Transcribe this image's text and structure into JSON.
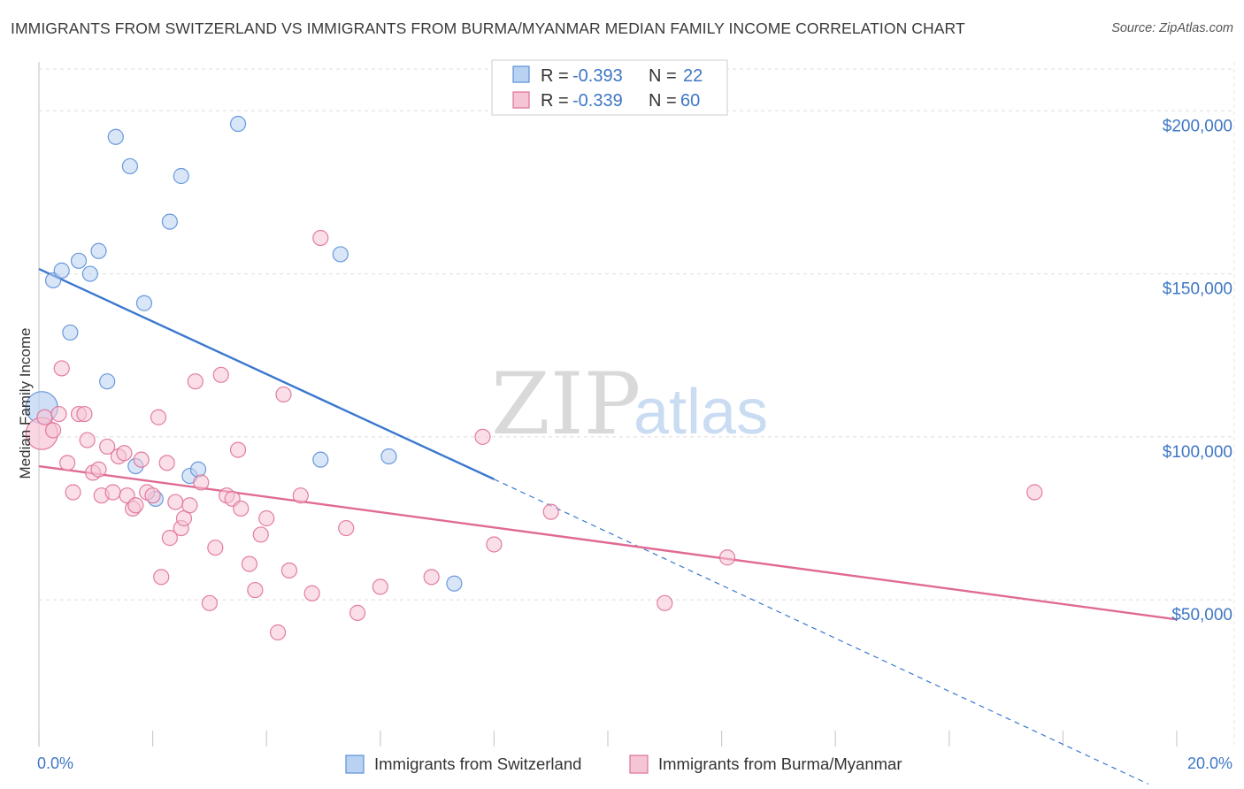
{
  "header": {
    "title": "IMMIGRANTS FROM SWITZERLAND VS IMMIGRANTS FROM BURMA/MYANMAR MEDIAN FAMILY INCOME CORRELATION CHART",
    "source": "Source: ZipAtlas.com"
  },
  "watermark": {
    "zip": "ZIP",
    "atlas": "atlas"
  },
  "legend_top": {
    "rows": [
      {
        "r_label": "R = ",
        "r_value": "-0.393",
        "n_label": "N = ",
        "n_value": "22"
      },
      {
        "r_label": "R = ",
        "r_value": "-0.339",
        "n_label": "N = ",
        "n_value": "60"
      }
    ]
  },
  "chart_data": {
    "type": "scatter",
    "title": "IMMIGRANTS FROM SWITZERLAND VS IMMIGRANTS FROM BURMA/MYANMAR MEDIAN FAMILY INCOME CORRELATION CHART",
    "xlabel": "",
    "ylabel": "Median Family Income",
    "xlim": [
      0,
      20
    ],
    "ylim": [
      5000,
      215000
    ],
    "x_tick_labels": [
      "0.0%",
      "20.0%"
    ],
    "y_ticks": [
      {
        "value": 50000,
        "label": "$50,000"
      },
      {
        "value": 100000,
        "label": "$100,000"
      },
      {
        "value": 150000,
        "label": "$150,000"
      },
      {
        "value": 200000,
        "label": "$200,000"
      }
    ],
    "grid": true,
    "legend_position": "bottom",
    "series": [
      {
        "name": "Immigrants from Switzerland",
        "color": "#5b8fd8",
        "fill": "#b9d2f2",
        "r": -0.393,
        "n": 22,
        "points": [
          [
            0.05,
            109000
          ],
          [
            0.25,
            148000
          ],
          [
            0.4,
            151000
          ],
          [
            0.55,
            132000
          ],
          [
            0.7,
            154000
          ],
          [
            0.9,
            150000
          ],
          [
            1.05,
            157000
          ],
          [
            1.2,
            117000
          ],
          [
            1.35,
            192000
          ],
          [
            1.6,
            183000
          ],
          [
            1.7,
            91000
          ],
          [
            1.85,
            141000
          ],
          [
            2.05,
            81000
          ],
          [
            2.3,
            166000
          ],
          [
            2.5,
            180000
          ],
          [
            2.65,
            88000
          ],
          [
            2.8,
            90000
          ],
          [
            3.5,
            196000
          ],
          [
            4.95,
            93000
          ],
          [
            5.3,
            156000
          ],
          [
            6.15,
            94000
          ],
          [
            7.3,
            55000
          ]
        ],
        "trend": {
          "x0": 0,
          "y0": 151500,
          "x1": 8.0,
          "y1": 87000,
          "dashed_to_x": 19.5,
          "dashed_to_y": -6500
        }
      },
      {
        "name": "Immigrants from Burma/Myanmar",
        "color": "#e07098",
        "fill": "#f6c5d5",
        "r": -0.339,
        "n": 60,
        "points": [
          [
            0.05,
            101000
          ],
          [
            0.1,
            106000
          ],
          [
            0.25,
            102000
          ],
          [
            0.35,
            107000
          ],
          [
            0.4,
            121000
          ],
          [
            0.5,
            92000
          ],
          [
            0.6,
            83000
          ],
          [
            0.7,
            107000
          ],
          [
            0.8,
            107000
          ],
          [
            0.85,
            99000
          ],
          [
            0.95,
            89000
          ],
          [
            1.05,
            90000
          ],
          [
            1.1,
            82000
          ],
          [
            1.2,
            97000
          ],
          [
            1.3,
            83000
          ],
          [
            1.4,
            94000
          ],
          [
            1.5,
            95000
          ],
          [
            1.55,
            82000
          ],
          [
            1.65,
            78000
          ],
          [
            1.7,
            79000
          ],
          [
            1.8,
            93000
          ],
          [
            1.9,
            83000
          ],
          [
            2.0,
            82000
          ],
          [
            2.1,
            106000
          ],
          [
            2.15,
            57000
          ],
          [
            2.25,
            92000
          ],
          [
            2.3,
            69000
          ],
          [
            2.4,
            80000
          ],
          [
            2.5,
            72000
          ],
          [
            2.55,
            75000
          ],
          [
            2.65,
            79000
          ],
          [
            2.75,
            117000
          ],
          [
            2.85,
            86000
          ],
          [
            3.0,
            49000
          ],
          [
            3.1,
            66000
          ],
          [
            3.2,
            119000
          ],
          [
            3.3,
            82000
          ],
          [
            3.4,
            81000
          ],
          [
            3.5,
            96000
          ],
          [
            3.55,
            78000
          ],
          [
            3.7,
            61000
          ],
          [
            3.8,
            53000
          ],
          [
            3.9,
            70000
          ],
          [
            4.0,
            75000
          ],
          [
            4.2,
            40000
          ],
          [
            4.3,
            113000
          ],
          [
            4.4,
            59000
          ],
          [
            4.6,
            82000
          ],
          [
            4.8,
            52000
          ],
          [
            4.95,
            161000
          ],
          [
            5.4,
            72000
          ],
          [
            5.6,
            46000
          ],
          [
            6.0,
            54000
          ],
          [
            6.9,
            57000
          ],
          [
            7.8,
            100000
          ],
          [
            8.0,
            67000
          ],
          [
            9.0,
            77000
          ],
          [
            11.0,
            49000
          ],
          [
            12.1,
            63000
          ],
          [
            17.5,
            83000
          ]
        ],
        "trend": {
          "x0": 0,
          "y0": 91000,
          "x1": 20,
          "y1": 44000
        }
      }
    ]
  },
  "bottom_legend": {
    "items": [
      "Immigrants from Switzerland",
      "Immigrants from Burma/Myanmar"
    ]
  }
}
